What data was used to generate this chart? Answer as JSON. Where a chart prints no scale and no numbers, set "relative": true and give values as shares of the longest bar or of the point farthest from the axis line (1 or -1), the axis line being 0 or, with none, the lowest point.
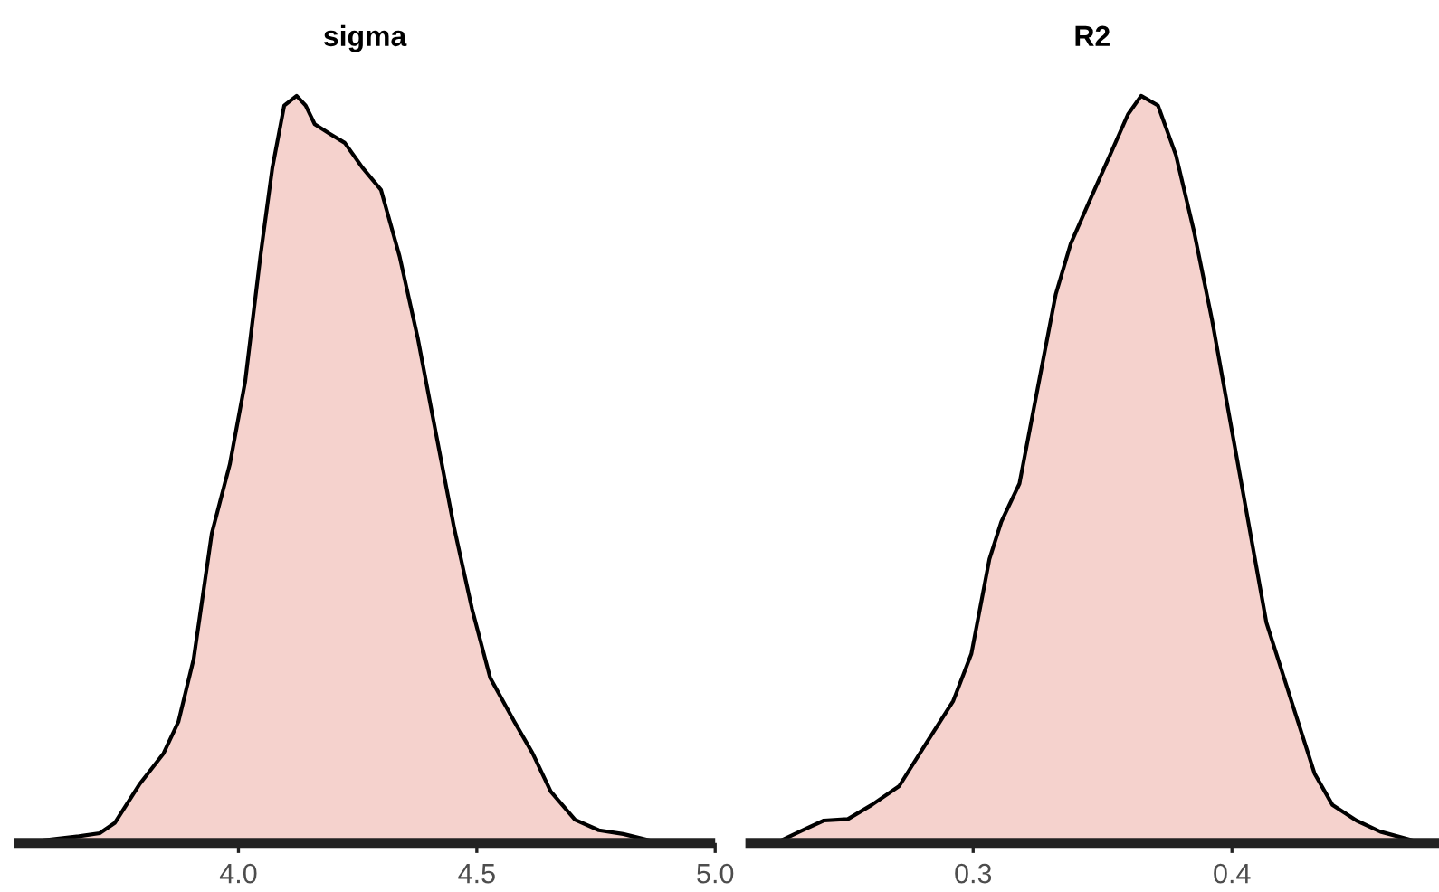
{
  "chart_data": [
    {
      "type": "area",
      "title": "sigma",
      "relative": true,
      "grid": false,
      "legend": false,
      "tick_labels": "x",
      "xlim": [
        3.53,
        5.0
      ],
      "xticks": [
        {
          "value": 4.0,
          "label": "4.0"
        },
        {
          "value": 4.5,
          "label": "4.5"
        },
        {
          "value": 5.0,
          "label": "5.0"
        }
      ],
      "series": [
        {
          "color": "#f5d2cd",
          "x": [
            3.595,
            3.665,
            3.709,
            3.741,
            3.792,
            3.843,
            3.874,
            3.906,
            3.944,
            3.982,
            4.014,
            4.046,
            4.071,
            4.096,
            4.122,
            4.141,
            4.16,
            4.192,
            4.223,
            4.261,
            4.299,
            4.338,
            4.376,
            4.414,
            4.452,
            4.49,
            4.528,
            4.579,
            4.617,
            4.655,
            4.706,
            4.756,
            4.807,
            4.871,
            4.94
          ],
          "values": [
            0.004,
            0.009,
            0.013,
            0.027,
            0.078,
            0.12,
            0.162,
            0.246,
            0.414,
            0.507,
            0.617,
            0.785,
            0.903,
            0.987,
            1.0,
            0.987,
            0.962,
            0.949,
            0.937,
            0.903,
            0.874,
            0.785,
            0.676,
            0.549,
            0.423,
            0.313,
            0.221,
            0.162,
            0.12,
            0.069,
            0.031,
            0.017,
            0.012,
            0.002,
            0.002
          ]
        }
      ]
    },
    {
      "type": "area",
      "title": "R2",
      "relative": true,
      "grid": false,
      "legend": false,
      "tick_labels": "x",
      "xlim": [
        0.212,
        0.48
      ],
      "xticks": [
        0.3,
        0.4
      ],
      "series": [
        {
          "color": "#f5d2cd",
          "x": [
            0.2237,
            0.2342,
            0.2423,
            0.2516,
            0.2609,
            0.2714,
            0.2807,
            0.2923,
            0.2993,
            0.3063,
            0.3109,
            0.3179,
            0.3249,
            0.3319,
            0.3377,
            0.3447,
            0.3528,
            0.3598,
            0.3649,
            0.3714,
            0.3784,
            0.3853,
            0.3923,
            0.3993,
            0.4063,
            0.4133,
            0.4226,
            0.4319,
            0.4388,
            0.4481,
            0.4574,
            0.4702
          ],
          "values": [
            0.0,
            0.017,
            0.03,
            0.032,
            0.051,
            0.076,
            0.127,
            0.19,
            0.253,
            0.38,
            0.43,
            0.481,
            0.608,
            0.734,
            0.802,
            0.857,
            0.92,
            0.975,
            1.0,
            0.987,
            0.92,
            0.819,
            0.7,
            0.565,
            0.43,
            0.295,
            0.194,
            0.093,
            0.051,
            0.03,
            0.015,
            0.003
          ]
        }
      ]
    }
  ]
}
